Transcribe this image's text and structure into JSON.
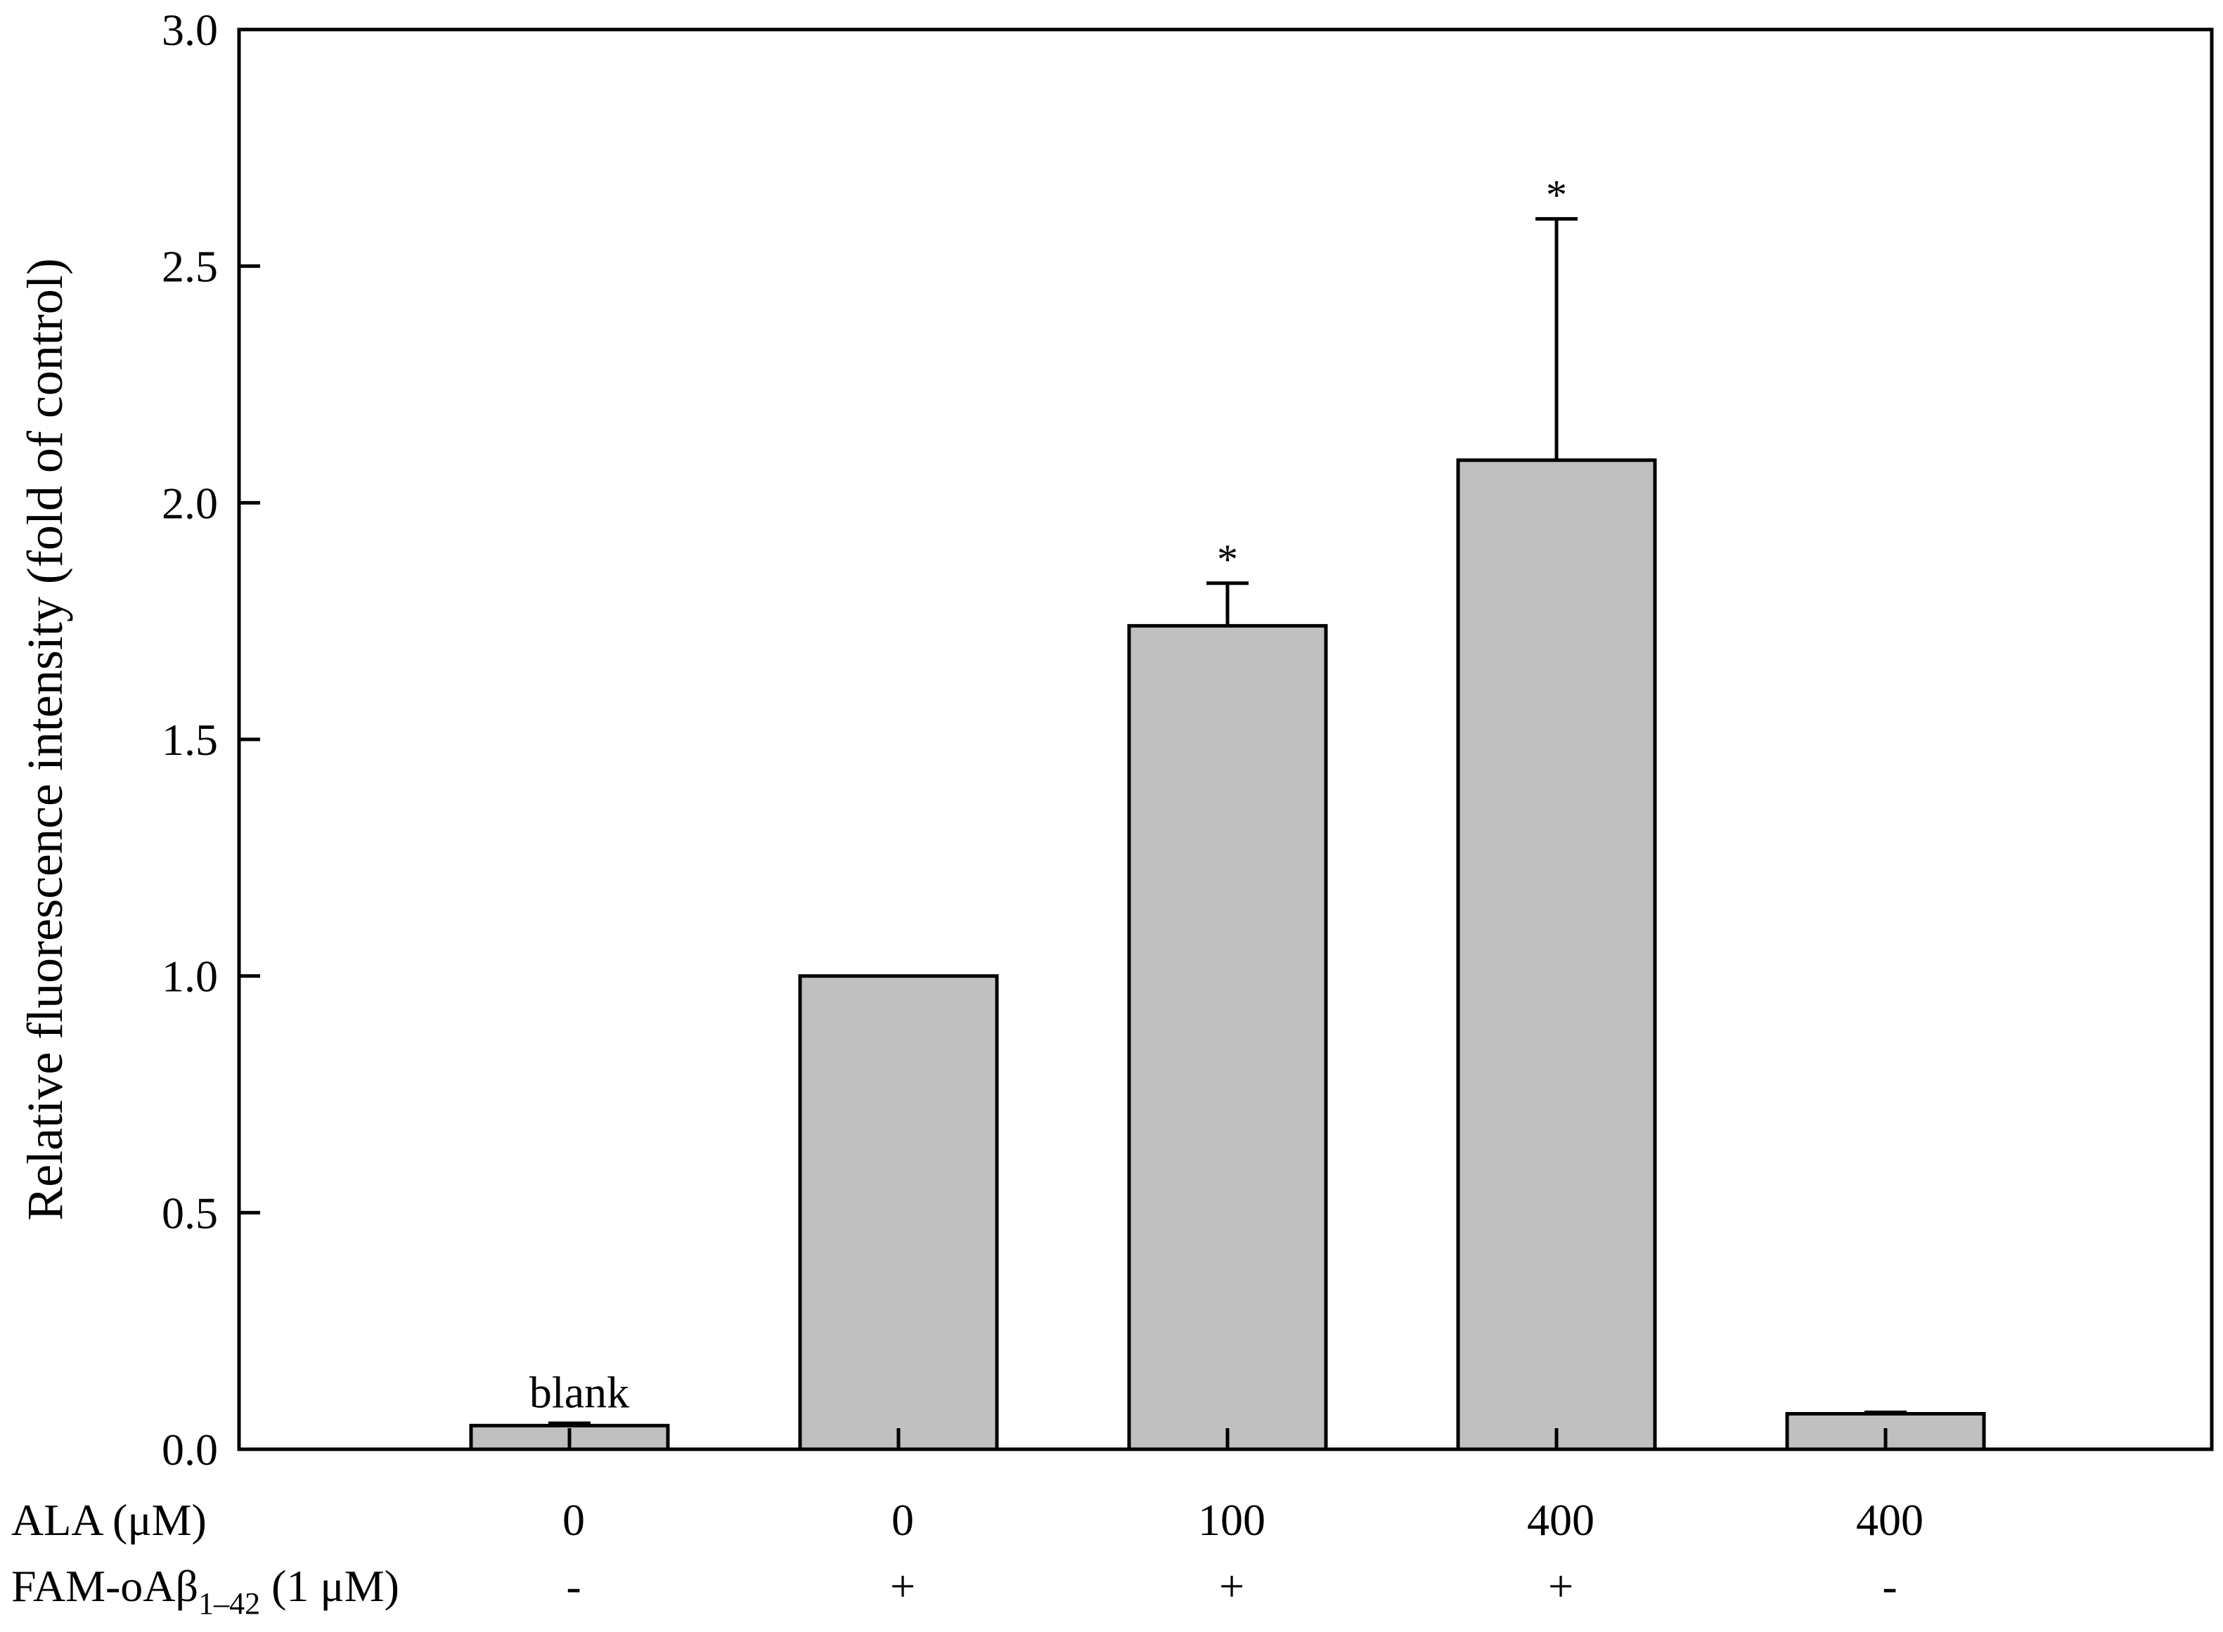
{
  "chart_data": {
    "type": "bar",
    "ylabel": "Relative fluorescence intensity (fold of control)",
    "ylim": [
      0,
      3.0
    ],
    "yticks": [
      "0.0",
      "0.5",
      "1.0",
      "1.5",
      "2.0",
      "2.5",
      "3.0"
    ],
    "bar_color": "#c0c0c0",
    "edge_color": "#000000",
    "grid": false,
    "values": [
      0.05,
      1.0,
      1.74,
      2.09,
      0.075
    ],
    "errors": [
      0.005,
      0.0,
      0.09,
      0.51,
      0.003
    ],
    "significance": [
      "",
      "",
      "*",
      "*",
      ""
    ],
    "annotations": [
      "blank",
      "",
      "",
      "",
      ""
    ],
    "condition_rows": [
      {
        "label": "ALA (μM)",
        "values": [
          "0",
          "0",
          "100",
          "400",
          "400"
        ]
      },
      {
        "label_main": "FAM-oAβ",
        "label_sub": "1–42",
        "label_tail": " (1 μM)",
        "values": [
          "-",
          "+",
          "+",
          "+",
          "-"
        ]
      }
    ]
  }
}
